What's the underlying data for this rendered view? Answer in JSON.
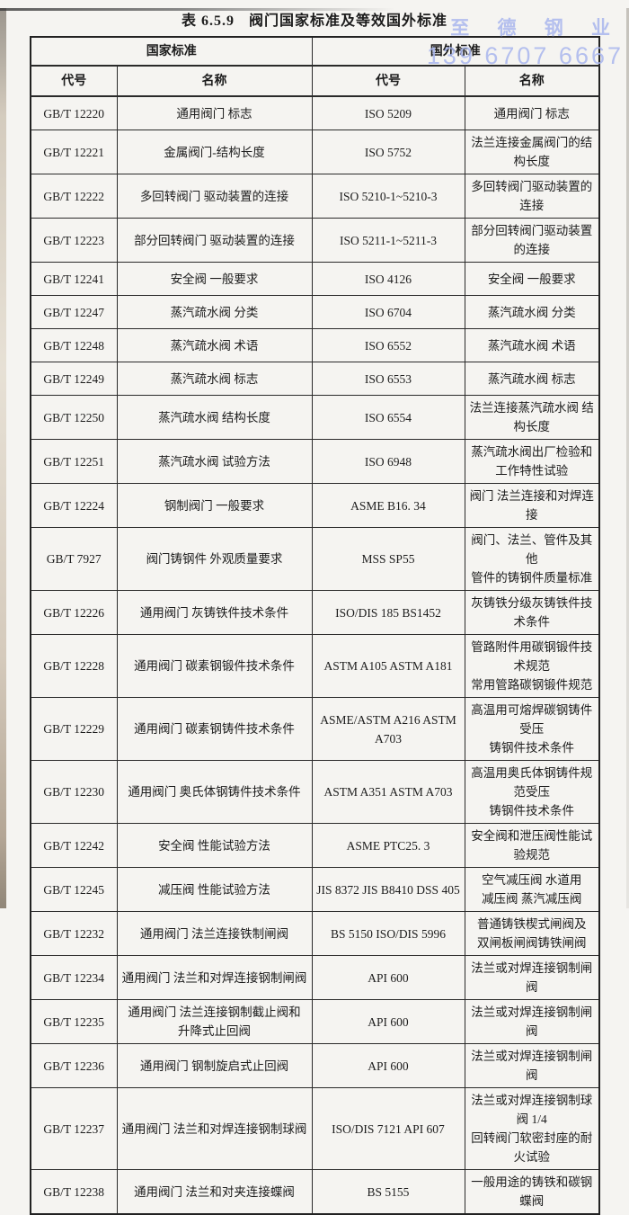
{
  "page": {
    "title_label": "表 6.5.9",
    "title_text": "阀门国家标准及等效国外标准"
  },
  "watermark": {
    "company": "至 德 钢 业",
    "phone": "139 6707 6667",
    "color": "#a9b6ee"
  },
  "table": {
    "group_headers": [
      {
        "label": "国家标准"
      },
      {
        "label": "国外标准"
      }
    ],
    "column_headers": [
      "代号",
      "名称",
      "代号",
      "名称"
    ],
    "rows": [
      {
        "code": "GB/T 12220",
        "name": "通用阀门 标志",
        "foreign_code": "ISO 5209",
        "foreign_name": "通用阀门 标志"
      },
      {
        "code": "GB/T 12221",
        "name": "金属阀门-结构长度",
        "foreign_code": "ISO 5752",
        "foreign_name": "法兰连接金属阀门的结构长度"
      },
      {
        "code": "GB/T 12222",
        "name": "多回转阀门 驱动装置的连接",
        "foreign_code": "ISO 5210-1~5210-3",
        "foreign_name": "多回转阀门驱动装置的连接"
      },
      {
        "code": "GB/T 12223",
        "name": "部分回转阀门 驱动装置的连接",
        "foreign_code": "ISO 5211-1~5211-3",
        "foreign_name": "部分回转阀门驱动装置的连接"
      },
      {
        "code": "GB/T 12241",
        "name": "安全阀 一般要求",
        "foreign_code": "ISO 4126",
        "foreign_name": "安全阀 一般要求"
      },
      {
        "code": "GB/T 12247",
        "name": "蒸汽疏水阀 分类",
        "foreign_code": "ISO 6704",
        "foreign_name": "蒸汽疏水阀 分类"
      },
      {
        "code": "GB/T 12248",
        "name": "蒸汽疏水阀 术语",
        "foreign_code": "ISO 6552",
        "foreign_name": "蒸汽疏水阀 术语"
      },
      {
        "code": "GB/T 12249",
        "name": "蒸汽疏水阀 标志",
        "foreign_code": "ISO 6553",
        "foreign_name": "蒸汽疏水阀 标志"
      },
      {
        "code": "GB/T 12250",
        "name": "蒸汽疏水阀 结构长度",
        "foreign_code": "ISO 6554",
        "foreign_name": "法兰连接蒸汽疏水阀 结构长度"
      },
      {
        "code": "GB/T 12251",
        "name": "蒸汽疏水阀 试验方法",
        "foreign_code": "ISO 6948",
        "foreign_name": "蒸汽疏水阀出厂检验和\n工作特性试验"
      },
      {
        "code": "GB/T 12224",
        "name": "钢制阀门 一般要求",
        "foreign_code": "ASME B16. 34",
        "foreign_name": "阀门 法兰连接和对焊连接"
      },
      {
        "code": "GB/T 7927",
        "name": "阀门铸钢件 外观质量要求",
        "foreign_code": "MSS SP55",
        "foreign_name": "阀门、法兰、管件及其他\n管件的铸钢件质量标准"
      },
      {
        "code": "GB/T 12226",
        "name": "通用阀门 灰铸铁件技术条件",
        "foreign_code": "ISO/DIS 185 BS1452",
        "foreign_name": "灰铸铁分级灰铸铁件技术条件"
      },
      {
        "code": "GB/T 12228",
        "name": "通用阀门 碳素钢锻件技术条件",
        "foreign_code": "ASTM A105 ASTM A181",
        "foreign_name": "管路附件用碳钢锻件技术规范\n常用管路碳钢锻件规范"
      },
      {
        "code": "GB/T 12229",
        "name": "通用阀门 碳素钢铸件技术条件",
        "foreign_code": "ASME/ASTM A216 ASTM A703",
        "foreign_name": "高温用可熔焊碳钢铸件受压\n铸钢件技术条件"
      },
      {
        "code": "GB/T 12230",
        "name": "通用阀门 奥氏体钢铸件技术条件",
        "foreign_code": "ASTM A351 ASTM A703",
        "foreign_name": "高温用奥氏体钢铸件规范受压\n铸钢件技术条件"
      },
      {
        "code": "GB/T 12242",
        "name": "安全阀 性能试验方法",
        "foreign_code": "ASME PTC25. 3",
        "foreign_name": "安全阀和泄压阀性能试验规范"
      },
      {
        "code": "GB/T 12245",
        "name": "减压阀 性能试验方法",
        "foreign_code": "JIS 8372  JIS B8410  DSS 405",
        "foreign_name": "空气减压阀 水道用\n减压阀 蒸汽减压阀"
      },
      {
        "code": "GB/T 12232",
        "name": "通用阀门 法兰连接铁制闸阀",
        "foreign_code": "BS 5150  ISO/DIS 5996",
        "foreign_name": "普通铸铁楔式闸阀及\n双闸板闸阀铸铁闸阀"
      },
      {
        "code": "GB/T 12234",
        "name": "通用阀门 法兰和对焊连接钢制闸阀",
        "foreign_code": "API 600",
        "foreign_name": "法兰或对焊连接钢制闸阀"
      },
      {
        "code": "GB/T 12235",
        "name": "通用阀门 法兰连接钢制截止阀和\n升降式止回阀",
        "foreign_code": "API 600",
        "foreign_name": "法兰或对焊连接钢制闸阀"
      },
      {
        "code": "GB/T 12236",
        "name": "通用阀门 钢制旋启式止回阀",
        "foreign_code": "API 600",
        "foreign_name": "法兰或对焊连接钢制闸阀"
      },
      {
        "code": "GB/T 12237",
        "name": "通用阀门 法兰和对焊连接钢制球阀",
        "foreign_code": "ISO/DIS 7121  API 607",
        "foreign_name": "法兰或对焊连接钢制球阀 1/4\n回转阀门软密封座的耐火试验"
      },
      {
        "code": "GB/T 12238",
        "name": "通用阀门 法兰和对夹连接蝶阀",
        "foreign_code": "BS 5155",
        "foreign_name": "一般用途的铸铁和碳钢蝶阀"
      }
    ]
  }
}
